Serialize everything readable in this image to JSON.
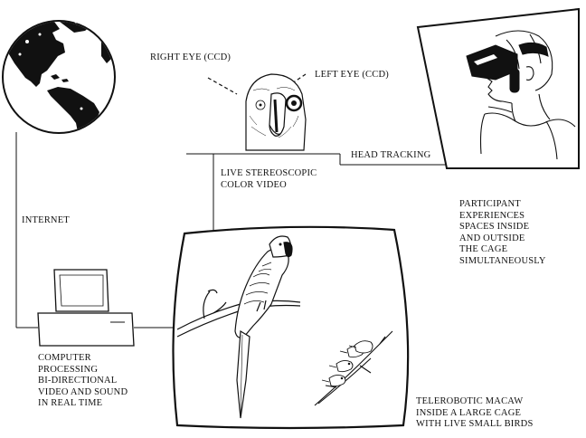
{
  "labels": {
    "right_eye": "RIGHT EYE (CCD)",
    "left_eye": "LEFT EYE (CCD)",
    "head_tracking": "HEAD TRACKING",
    "live_video": [
      "LIVE STEREOSCOPIC",
      "COLOR VIDEO"
    ],
    "internet": "INTERNET",
    "participant": [
      "PARTICIPANT",
      "EXPERIENCES",
      "SPACES INSIDE",
      "AND OUTSIDE",
      "THE CAGE",
      "SIMULTANEOUSLY"
    ],
    "computer": [
      "COMPUTER",
      "PROCESSING",
      "BI-DIRECTIONAL",
      "VIDEO AND SOUND",
      "IN REAL TIME"
    ],
    "macaw": [
      "TELEROBOTIC MACAW",
      "INSIDE A LARGE CAGE",
      "WITH LIVE SMALL BIRDS"
    ]
  }
}
